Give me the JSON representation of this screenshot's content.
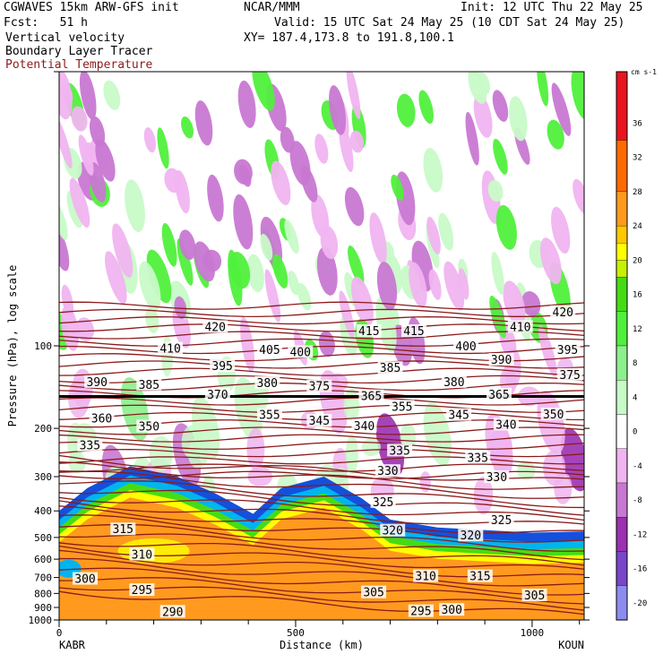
{
  "header": {
    "model": "CGWAVES 15km ARW-GFS init",
    "org": "NCAR/MMM",
    "init": "Init: 12 UTC Thu 22 May 25",
    "fcst": "Fcst:   51 h",
    "valid": "Valid: 15 UTC Sat 24 May 25 (10 CDT Sat 24 May 25)",
    "field1": "Vertical velocity",
    "field2": "Boundary Layer Tracer",
    "field3": "Potential Temperature",
    "xy": "XY= 187.4,173.8 to 191.8,100.1"
  },
  "colors": {
    "ptemp": "#8b1a1a",
    "tracer": "#ff9900",
    "up": "#33dd33",
    "down": "#9b30b0"
  },
  "chart_data": {
    "type": "heatmap",
    "title": "Vertical velocity / Boundary Layer Tracer / Potential Temperature",
    "xlabel": "Distance (km)",
    "ylabel": "Pressure (hPa), log scale",
    "xlim": [
      0,
      1110
    ],
    "ylim": [
      1000,
      10
    ],
    "y_scale": "log",
    "x_ticks": [
      0,
      500,
      1000
    ],
    "x_tick_labels": [
      "0",
      "500",
      "1000"
    ],
    "y_ticks": [
      100,
      200,
      300,
      400,
      500,
      600,
      700,
      800,
      900,
      1000
    ],
    "y_tick_labels": [
      "100",
      "200",
      "300",
      "400",
      "500",
      "600",
      "700",
      "800",
      "900",
      "1000"
    ],
    "endpoints": {
      "left": "KABR",
      "right": "KOUN"
    },
    "colorbar": {
      "units": "cm s-1",
      "min": -22,
      "max": 42,
      "step": 2,
      "labels": [
        "36",
        "32",
        "28",
        "24",
        "20",
        "16",
        "12",
        "8",
        "4",
        "0",
        "-4",
        "-8",
        "-12",
        "-16",
        "-20"
      ],
      "label_values": [
        36,
        32,
        28,
        24,
        20,
        16,
        12,
        8,
        4,
        0,
        -4,
        -8,
        -12,
        -16,
        -20
      ],
      "colors": [
        {
          "from": 34,
          "to": 42,
          "color": "#e8141e"
        },
        {
          "from": 28,
          "to": 34,
          "color": "#ff6a00"
        },
        {
          "from": 24,
          "to": 28,
          "color": "#ff9a1e"
        },
        {
          "from": 22,
          "to": 24,
          "color": "#ffc800"
        },
        {
          "from": 20,
          "to": 22,
          "color": "#ffff00"
        },
        {
          "from": 18,
          "to": 20,
          "color": "#c8f000"
        },
        {
          "from": 14,
          "to": 18,
          "color": "#46dc14"
        },
        {
          "from": 10,
          "to": 14,
          "color": "#50f03c"
        },
        {
          "from": 6,
          "to": 10,
          "color": "#8cf08c"
        },
        {
          "from": 2,
          "to": 6,
          "color": "#c8fac8"
        },
        {
          "from": -2,
          "to": 2,
          "color": "#ffffff"
        },
        {
          "from": -6,
          "to": -2,
          "color": "#f0b4f0"
        },
        {
          "from": -10,
          "to": -6,
          "color": "#c878d2"
        },
        {
          "from": -14,
          "to": -10,
          "color": "#9b30b0"
        },
        {
          "from": -18,
          "to": -14,
          "color": "#7846c8"
        },
        {
          "from": -22,
          "to": -18,
          "color": "#8c8cf0"
        }
      ]
    },
    "theta_labels": [
      {
        "text": "420",
        "x": 330,
        "p": 85
      },
      {
        "text": "420",
        "x": 1065,
        "p": 75
      },
      {
        "text": "410",
        "x": 235,
        "p": 102
      },
      {
        "text": "410",
        "x": 975,
        "p": 85
      },
      {
        "text": "415",
        "x": 655,
        "p": 88
      },
      {
        "text": "415",
        "x": 750,
        "p": 88
      },
      {
        "text": "405",
        "x": 445,
        "p": 103
      },
      {
        "text": "400",
        "x": 510,
        "p": 105
      },
      {
        "text": "400",
        "x": 860,
        "p": 100
      },
      {
        "text": "395",
        "x": 345,
        "p": 118
      },
      {
        "text": "395",
        "x": 1075,
        "p": 103
      },
      {
        "text": "390",
        "x": 80,
        "p": 135
      },
      {
        "text": "390",
        "x": 935,
        "p": 112
      },
      {
        "text": "385",
        "x": 190,
        "p": 138
      },
      {
        "text": "385",
        "x": 700,
        "p": 120
      },
      {
        "text": "380",
        "x": 440,
        "p": 136
      },
      {
        "text": "380",
        "x": 835,
        "p": 135
      },
      {
        "text": "375",
        "x": 550,
        "p": 140
      },
      {
        "text": "375",
        "x": 1080,
        "p": 127
      },
      {
        "text": "370",
        "x": 335,
        "p": 150
      },
      {
        "text": "365",
        "x": 660,
        "p": 152
      },
      {
        "text": "365",
        "x": 930,
        "p": 150
      },
      {
        "text": "360",
        "x": 90,
        "p": 183
      },
      {
        "text": "355",
        "x": 445,
        "p": 178
      },
      {
        "text": "355",
        "x": 725,
        "p": 166
      },
      {
        "text": "350",
        "x": 190,
        "p": 196
      },
      {
        "text": "350",
        "x": 1045,
        "p": 177
      },
      {
        "text": "345",
        "x": 550,
        "p": 187
      },
      {
        "text": "345",
        "x": 845,
        "p": 178
      },
      {
        "text": "340",
        "x": 645,
        "p": 195
      },
      {
        "text": "340",
        "x": 945,
        "p": 193
      },
      {
        "text": "335",
        "x": 65,
        "p": 230
      },
      {
        "text": "335",
        "x": 720,
        "p": 240
      },
      {
        "text": "335",
        "x": 885,
        "p": 255
      },
      {
        "text": "330",
        "x": 695,
        "p": 285
      },
      {
        "text": "330",
        "x": 925,
        "p": 300
      },
      {
        "text": "325",
        "x": 685,
        "p": 370
      },
      {
        "text": "325",
        "x": 935,
        "p": 430
      },
      {
        "text": "320",
        "x": 705,
        "p": 470
      },
      {
        "text": "320",
        "x": 870,
        "p": 490
      },
      {
        "text": "315",
        "x": 135,
        "p": 465
      },
      {
        "text": "315",
        "x": 890,
        "p": 690
      },
      {
        "text": "310",
        "x": 175,
        "p": 575
      },
      {
        "text": "310",
        "x": 775,
        "p": 690
      },
      {
        "text": "305",
        "x": 665,
        "p": 790
      },
      {
        "text": "305",
        "x": 1005,
        "p": 810
      },
      {
        "text": "300",
        "x": 55,
        "p": 705
      },
      {
        "text": "300",
        "x": 830,
        "p": 915
      },
      {
        "text": "295",
        "x": 175,
        "p": 775
      },
      {
        "text": "295",
        "x": 765,
        "p": 925
      },
      {
        "text": "290",
        "x": 240,
        "p": 930
      }
    ]
  }
}
